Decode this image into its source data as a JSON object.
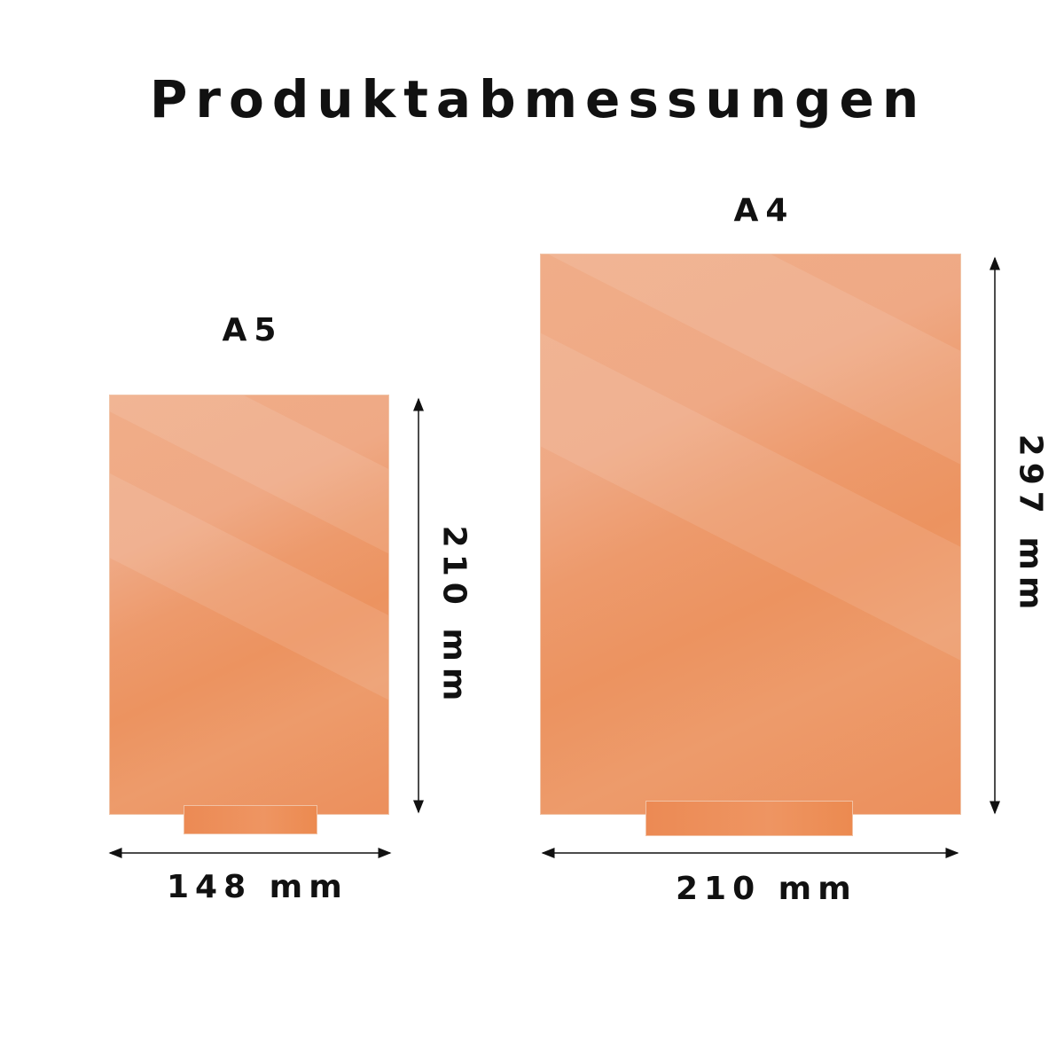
{
  "title": "Produktabmessungen",
  "colors": {
    "board": "#ed9a6a",
    "text": "#111111"
  },
  "products": [
    {
      "label": "A5",
      "width": "148 mm",
      "height": "210 mm"
    },
    {
      "label": "A4",
      "width": "210 mm",
      "height": "297 mm"
    }
  ]
}
